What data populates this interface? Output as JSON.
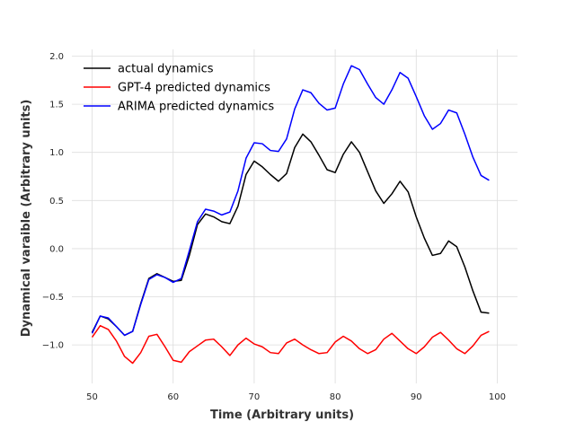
{
  "chart_data": {
    "type": "line",
    "title": "",
    "xlabel": "Time (Arbitrary units)",
    "ylabel": "Dynamical varaible (Arbitrary units)",
    "xlim": [
      47.5,
      102.5
    ],
    "ylim": [
      -1.4,
      2.07
    ],
    "xticks": [
      50,
      60,
      70,
      80,
      90,
      100
    ],
    "yticks": [
      -1.0,
      -0.5,
      0.0,
      0.5,
      1.0,
      1.5,
      2.0
    ],
    "xtick_labels": [
      "50",
      "60",
      "70",
      "80",
      "90",
      "100"
    ],
    "ytick_labels": [
      "−1.0",
      "−0.5",
      "0.0",
      "0.5",
      "1.0",
      "1.5",
      "2.0"
    ],
    "grid": true,
    "legend_position": "top-left",
    "series": [
      {
        "name": "actual dynamics",
        "color": "#000000",
        "x_start": 50,
        "values": [
          -0.87,
          -0.7,
          -0.73,
          -0.81,
          -0.9,
          -0.86,
          -0.57,
          -0.31,
          -0.26,
          -0.3,
          -0.34,
          -0.33,
          -0.07,
          0.25,
          0.36,
          0.33,
          0.28,
          0.26,
          0.44,
          0.77,
          0.91,
          0.85,
          0.77,
          0.7,
          0.78,
          1.05,
          1.19,
          1.11,
          0.97,
          0.82,
          0.79,
          0.98,
          1.11,
          1.0,
          0.8,
          0.6,
          0.47,
          0.57,
          0.7,
          0.59,
          0.33,
          0.11,
          -0.07,
          -0.05,
          0.08,
          0.02,
          -0.19,
          -0.44,
          -0.66,
          -0.67
        ]
      },
      {
        "name": "GPT-4 predicted dynamics",
        "color": "#ff0000",
        "x_start": 50,
        "values": [
          -0.92,
          -0.8,
          -0.84,
          -0.96,
          -1.12,
          -1.19,
          -1.08,
          -0.91,
          -0.89,
          -1.02,
          -1.16,
          -1.18,
          -1.07,
          -1.01,
          -0.95,
          -0.94,
          -1.02,
          -1.11,
          -1.0,
          -0.93,
          -0.99,
          -1.02,
          -1.08,
          -1.09,
          -0.98,
          -0.94,
          -1.0,
          -1.05,
          -1.09,
          -1.08,
          -0.97,
          -0.91,
          -0.96,
          -1.04,
          -1.09,
          -1.05,
          -0.94,
          -0.88,
          -0.96,
          -1.04,
          -1.09,
          -1.02,
          -0.92,
          -0.87,
          -0.95,
          -1.04,
          -1.09,
          -1.01,
          -0.9,
          -0.86
        ]
      },
      {
        "name": "ARIMA predicted dynamics",
        "color": "#0000ff",
        "x_start": 50,
        "values": [
          -0.88,
          -0.7,
          -0.72,
          -0.81,
          -0.9,
          -0.86,
          -0.58,
          -0.32,
          -0.27,
          -0.3,
          -0.35,
          -0.31,
          -0.02,
          0.28,
          0.41,
          0.39,
          0.35,
          0.38,
          0.6,
          0.94,
          1.1,
          1.09,
          1.02,
          1.01,
          1.14,
          1.45,
          1.65,
          1.62,
          1.51,
          1.44,
          1.46,
          1.71,
          1.9,
          1.86,
          1.71,
          1.57,
          1.5,
          1.65,
          1.83,
          1.77,
          1.58,
          1.38,
          1.24,
          1.3,
          1.44,
          1.41,
          1.19,
          0.95,
          0.76,
          0.71
        ]
      }
    ]
  }
}
